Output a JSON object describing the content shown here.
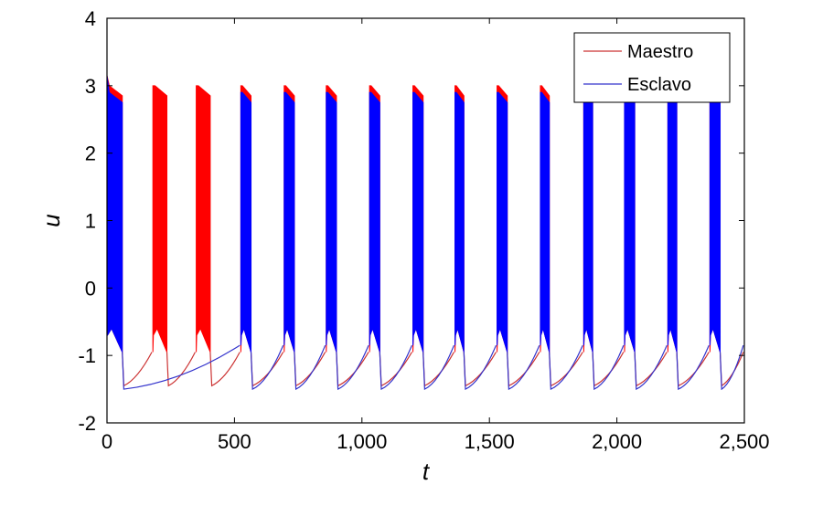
{
  "chart_data": {
    "type": "line",
    "xlabel": "t",
    "ylabel": "u",
    "xlim": [
      0,
      2500
    ],
    "ylim": [
      -2,
      4
    ],
    "xticks": [
      0,
      500,
      1000,
      1500,
      2000,
      2500
    ],
    "xtick_labels": [
      "0",
      "500",
      "1,000",
      "1,500",
      "2,000",
      "2,500"
    ],
    "yticks": [
      -2,
      -1,
      0,
      1,
      2,
      3,
      4
    ],
    "ytick_labels": [
      "-2",
      "-1",
      "0",
      "1",
      "2",
      "3",
      "4"
    ],
    "grid": false,
    "legend_position": "top-right",
    "colors": {
      "maestro": "#ff0000",
      "esclavo": "#0000ff",
      "maestro_line": "#cc3333",
      "esclavo_line": "#3333cc"
    },
    "series": [
      {
        "name": "Maestro",
        "burst_starts": [
          0,
          180,
          350,
          525,
          695,
          860,
          1030,
          1200,
          1365,
          1530,
          1700,
          1870,
          2030,
          2200,
          2365
        ],
        "burst_ends": [
          60,
          235,
          405,
          565,
          735,
          900,
          1070,
          1240,
          1400,
          1570,
          1735,
          1905,
          2070,
          2235,
          2405
        ],
        "burst_peak": 3.0,
        "burst_trough": -0.6,
        "rest_min": -1.45,
        "rest_pre_burst": -0.95
      },
      {
        "name": "Esclavo",
        "burst_starts": [
          0,
          525,
          695,
          860,
          1030,
          1200,
          1365,
          1530,
          1700,
          1870,
          2030,
          2200,
          2365
        ],
        "burst_ends": [
          60,
          565,
          735,
          900,
          1070,
          1240,
          1400,
          1570,
          1735,
          1905,
          2070,
          2235,
          2405
        ],
        "burst_peak": 2.9,
        "burst_trough": -0.6,
        "rest_min": -1.5,
        "rest_pre_burst": -0.85
      }
    ]
  }
}
